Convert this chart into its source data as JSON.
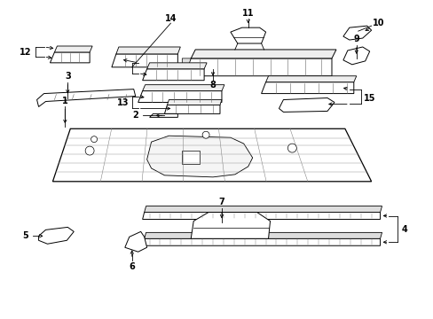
{
  "bg_color": "#ffffff",
  "fig_width": 4.89,
  "fig_height": 3.6,
  "dpi": 100,
  "line_color": "#000000",
  "text_color": "#000000"
}
